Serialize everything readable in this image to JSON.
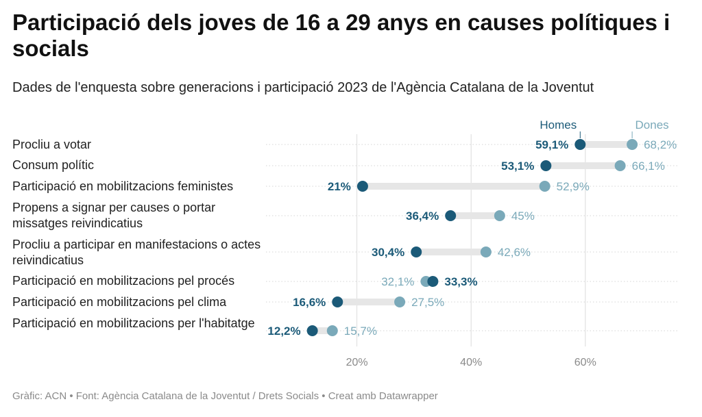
{
  "title": "Participació dels joves de 16 a 29 anys en causes polítiques i socials",
  "subtitle": "Dades de l'enquesta sobre generacions i participació 2023 de l'Agència Catalana de la Joventut",
  "footer": "Gràfic: ACN • Font: Agència Catalana de la Joventut / Drets Socials • Creat amb Datawrapper",
  "colors": {
    "homes": "#1b5a78",
    "dones": "#7aa9b9",
    "range": "#e6e6e6",
    "grid": "#dcdcdc",
    "axis_text": "#8a8a8a"
  },
  "chart_data": {
    "type": "dot-range",
    "legend": {
      "homes": "Homes",
      "dones": "Dones",
      "placement": "top"
    },
    "xlim": [
      0,
      80
    ],
    "xticks": [
      20,
      40,
      60
    ],
    "xtick_labels": [
      "20%",
      "40%",
      "60%"
    ],
    "grid": true,
    "categories": [
      "Procliu a votar",
      "Consum polític",
      "Participació en mobilitzacions feministes",
      "Propens a signar per causes o portar missatges reivindicatius",
      "Procliu a participar en manifestacions o actes reivindicatius",
      "Participació en mobilitzacions pel procés",
      "Participació en mobilitzacions pel clima",
      "Participació en mobilitzacions per l'habitatge"
    ],
    "series": [
      {
        "name": "Homes",
        "values": [
          59.1,
          53.1,
          21,
          36.4,
          30.4,
          33.3,
          16.6,
          12.2
        ],
        "labels": [
          "59,1%",
          "53,1%",
          "21%",
          "36,4%",
          "30,4%",
          "33,3%",
          "16,6%",
          "12,2%"
        ]
      },
      {
        "name": "Dones",
        "values": [
          68.2,
          66.1,
          52.9,
          45,
          42.6,
          32.1,
          27.5,
          15.7
        ],
        "labels": [
          "68,2%",
          "66,1%",
          "52,9%",
          "45%",
          "42,6%",
          "32,1%",
          "27,5%",
          "15,7%"
        ]
      }
    ]
  }
}
